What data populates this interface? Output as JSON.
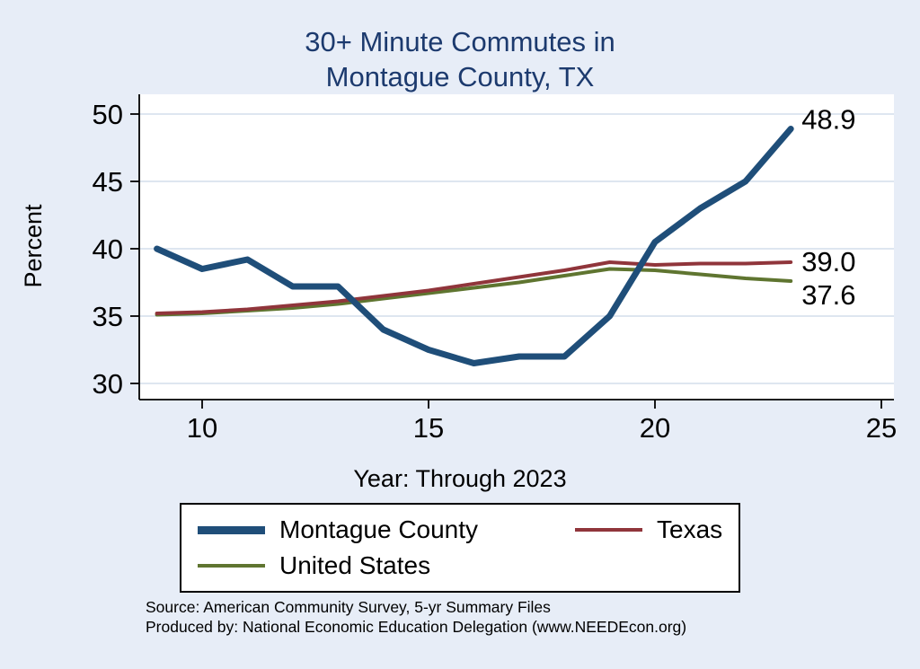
{
  "title": {
    "line1": "30+ Minute Commutes in",
    "line2": "Montague County, TX"
  },
  "axes": {
    "y_label": "Percent",
    "x_label": "Year: Through 2023"
  },
  "legend": {
    "items": [
      {
        "label": "Montague County",
        "color": "#1f4e79"
      },
      {
        "label": "Texas",
        "color": "#90353b"
      },
      {
        "label": "United States",
        "color": "#5f7530"
      }
    ]
  },
  "source": {
    "line1": "Source: American Community Survey, 5-yr Summary Files",
    "line2": "Produced by: National Economic Education Delegation (www.NEEDEcon.org)"
  },
  "colors": {
    "background": "#e7edf7",
    "plot_background": "#ffffff",
    "grid": "#c9d7e8",
    "axis": "#000000",
    "title": "#1c3a6e"
  },
  "chart_data": {
    "type": "line",
    "title": "30+ Minute Commutes in Montague County, TX",
    "xlabel": "Year: Through 2023",
    "ylabel": "Percent",
    "x": [
      9,
      10,
      11,
      12,
      13,
      14,
      15,
      16,
      17,
      18,
      19,
      20,
      21,
      22,
      23
    ],
    "x_ticks": [
      10,
      15,
      20,
      25
    ],
    "y_ticks": [
      30,
      35,
      40,
      45,
      50
    ],
    "xlim": [
      8.6,
      25.3
    ],
    "ylim": [
      28.8,
      51.5
    ],
    "grid": "horizontal",
    "legend_position": "bottom",
    "series": [
      {
        "name": "Montague County",
        "color": "#1f4e79",
        "line_width": 7,
        "values": [
          40.0,
          38.5,
          39.2,
          37.2,
          37.2,
          34.0,
          32.5,
          31.5,
          32.0,
          32.0,
          35.0,
          40.5,
          43.0,
          45.0,
          48.9
        ],
        "end_label": "48.9",
        "end_label_dy": -10
      },
      {
        "name": "Texas",
        "color": "#90353b",
        "line_width": 4,
        "values": [
          35.2,
          35.3,
          35.5,
          35.8,
          36.1,
          36.5,
          36.9,
          37.4,
          37.9,
          38.4,
          39.0,
          38.8,
          38.9,
          38.9,
          39.0
        ],
        "end_label": "39.0",
        "end_label_dy": 0
      },
      {
        "name": "United States",
        "color": "#5f7530",
        "line_width": 4,
        "values": [
          35.1,
          35.2,
          35.4,
          35.6,
          35.9,
          36.3,
          36.7,
          37.1,
          37.5,
          38.0,
          38.5,
          38.4,
          38.1,
          37.8,
          37.6
        ],
        "end_label": "37.6",
        "end_label_dy": 16
      }
    ]
  }
}
